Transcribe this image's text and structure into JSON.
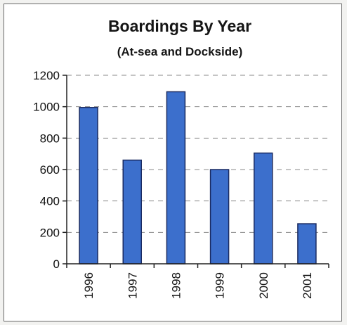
{
  "chart_data": {
    "type": "bar",
    "title": "Boardings By Year",
    "subtitle": "(At-sea and Dockside)",
    "categories": [
      "1996",
      "1997",
      "1998",
      "1999",
      "2000",
      "2001"
    ],
    "values": [
      995,
      660,
      1095,
      600,
      705,
      255
    ],
    "xlabel": "",
    "ylabel": "",
    "ylim": [
      0,
      1200
    ],
    "yticks": [
      "0",
      "200",
      "400",
      "600",
      "800",
      "1000",
      "1200"
    ],
    "grid": true,
    "legend": "none",
    "colors": {
      "bar": "#3c6fcc",
      "bar_edge": "#1a2a60",
      "grid": "#8a8a8a",
      "axis": "#222222"
    }
  }
}
